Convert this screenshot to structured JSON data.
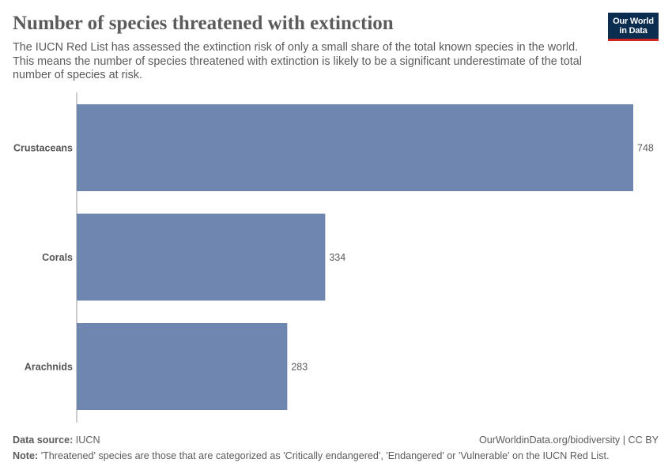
{
  "header": {
    "title": "Number of species threatened with extinction",
    "subtitle": "The IUCN Red List has assessed the extinction risk of only a small share of the total known species in the world. This means the number of species threatened with extinction is likely to be a significant underestimate of the total number of species at risk."
  },
  "logo": {
    "line1": "Our World",
    "line2": "in Data",
    "bg_color": "#0a2d50",
    "accent_color": "#ce261e"
  },
  "chart_data": {
    "type": "bar",
    "orientation": "horizontal",
    "categories": [
      "Crustaceans",
      "Corals",
      "Arachnids"
    ],
    "values": [
      748,
      334,
      283
    ],
    "value_labels": [
      "748",
      "334",
      "283"
    ],
    "bar_color": "#6f87b0",
    "grid": false,
    "legend": "none"
  },
  "footer": {
    "source_label": "Data source:",
    "source_value": "IUCN",
    "url_license": "OurWorldinData.org/biodiversity | CC BY",
    "note_label": "Note:",
    "note_value": "'Threatened' species are those that are categorized as 'Critically endangered', 'Endangered' or 'Vulnerable' on the IUCN Red List."
  }
}
